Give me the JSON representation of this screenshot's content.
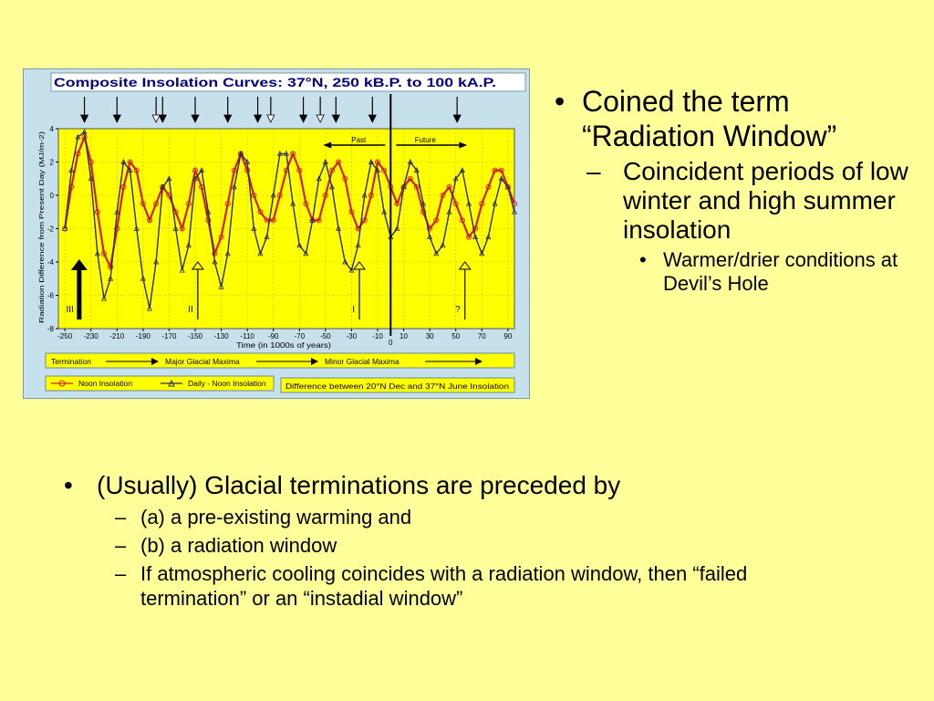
{
  "chart_data": {
    "type": "line",
    "title": "Composite Insolation Curves: 37°N, 250 kB.P. to 100 kA.P.",
    "xlabel": "Time (in 1000s of years)",
    "ylabel": "Radiation Difference from Present Day (MJ/m-2)",
    "xlim": [
      -255,
      95
    ],
    "ylim": [
      -8,
      4
    ],
    "x_ticks": [
      -250,
      -230,
      -210,
      -190,
      -170,
      -150,
      -130,
      -110,
      -90,
      -70,
      -50,
      -30,
      -10,
      0,
      10,
      30,
      50,
      70,
      90
    ],
    "x_tick_labels": [
      "-250",
      "-230",
      "-210",
      "-190",
      "-170",
      "-150",
      "-130",
      "-110",
      "-90",
      "-70",
      "-50",
      "-30",
      "-10",
      "0",
      "10",
      "30",
      "50",
      "70",
      "90"
    ],
    "y_ticks": [
      4,
      2,
      0,
      -2,
      -4,
      -6,
      -8
    ],
    "y_tick_labels": [
      "4",
      "2",
      "0",
      "-2",
      "-4",
      "-6",
      "-8"
    ],
    "series": [
      {
        "name": "Noon Insolation",
        "color": "#cc2222",
        "marker": "circle",
        "x": [
          -250,
          -245,
          -240,
          -235,
          -230,
          -225,
          -220,
          -215,
          -210,
          -205,
          -200,
          -195,
          -190,
          -185,
          -180,
          -175,
          -170,
          -165,
          -160,
          -155,
          -150,
          -145,
          -140,
          -135,
          -130,
          -125,
          -120,
          -115,
          -110,
          -105,
          -100,
          -95,
          -90,
          -85,
          -80,
          -75,
          -70,
          -65,
          -60,
          -55,
          -50,
          -45,
          -40,
          -35,
          -30,
          -25,
          -20,
          -15,
          -10,
          -5,
          0,
          5,
          10,
          15,
          20,
          25,
          30,
          35,
          40,
          45,
          50,
          55,
          60,
          65,
          70,
          75,
          80,
          85,
          90,
          95
        ],
        "y": [
          -2,
          0.5,
          2.5,
          3.5,
          2,
          -1,
          -3.5,
          -4.3,
          -2,
          0.5,
          2,
          1.5,
          -0.5,
          -1.5,
          -0.5,
          0.5,
          0,
          -1,
          -2,
          -0.5,
          1.5,
          0.5,
          -1.5,
          -3.5,
          -2.5,
          -0.5,
          1.5,
          2.5,
          1.5,
          0,
          -1,
          -1.5,
          -1.5,
          0,
          1.5,
          2.5,
          1.5,
          -0.5,
          -1.5,
          -1.5,
          0,
          1.5,
          2,
          1,
          -1,
          -2,
          -1.5,
          0,
          2,
          1.5,
          0.5,
          -0.5,
          0.5,
          1,
          0.5,
          -1,
          -2,
          -1.5,
          0,
          0.5,
          -0.5,
          -1.5,
          -2.5,
          -2,
          -0.5,
          0.5,
          1.5,
          1.5,
          0.5,
          -0.5
        ]
      },
      {
        "name": "Daily - Noon Insolation",
        "color": "#2a2a66",
        "marker": "triangle",
        "x": [
          -250,
          -245,
          -240,
          -235,
          -230,
          -225,
          -220,
          -215,
          -210,
          -205,
          -200,
          -195,
          -190,
          -185,
          -180,
          -175,
          -170,
          -165,
          -160,
          -155,
          -150,
          -145,
          -140,
          -135,
          -130,
          -125,
          -120,
          -115,
          -110,
          -105,
          -100,
          -95,
          -90,
          -85,
          -80,
          -75,
          -70,
          -65,
          -60,
          -55,
          -50,
          -45,
          -40,
          -35,
          -30,
          -25,
          -20,
          -15,
          -10,
          -5,
          0,
          5,
          10,
          15,
          20,
          25,
          30,
          35,
          40,
          45,
          50,
          55,
          60,
          65,
          70,
          75,
          80,
          85,
          90,
          95
        ],
        "y": [
          -2,
          1.5,
          3.5,
          3.8,
          1,
          -3.5,
          -6.2,
          -5,
          -1,
          2,
          1.5,
          -2,
          -5,
          -6.8,
          -4,
          0.5,
          1,
          -2,
          -4.5,
          -3,
          1,
          1.5,
          -1,
          -4,
          -5.5,
          -3.5,
          0.5,
          2.5,
          2,
          -2,
          -3.5,
          -2.5,
          0,
          2.5,
          2.5,
          -0.5,
          -3,
          -3.5,
          -1.5,
          1,
          2,
          0.5,
          -2,
          -4,
          -4.5,
          -3,
          0,
          2,
          1.5,
          -1,
          -2.5,
          -2,
          0.5,
          2,
          1.5,
          -0.5,
          -2.5,
          -3.5,
          -3,
          -1,
          1,
          1.5,
          -0.5,
          -2.5,
          -3.5,
          -2.5,
          -0.5,
          1,
          0.5,
          -1
        ]
      }
    ],
    "top_arrows": {
      "solid_x": [
        -235,
        -210,
        -175,
        -150,
        -125,
        -102,
        -67,
        -42,
        -14,
        51
      ],
      "outline_x": [
        -180,
        -92,
        -54
      ]
    },
    "bottom_arrows": [
      {
        "x": -239,
        "label": "III"
      },
      {
        "x": -148,
        "label": "II"
      },
      {
        "x": -24,
        "label": "I"
      },
      {
        "x": 57,
        "label": "?"
      }
    ],
    "divider_x": 0,
    "past_label": "Past",
    "future_label": "Future",
    "legend": {
      "termination": "Termination",
      "major": "Major Glacial Maxima",
      "minor": "Minor Glacial Maxima",
      "noon": "Noon Insolation",
      "daily": "Daily - Noon Insolation",
      "difference": "Difference between 20°N Dec and 37°N June Insolation"
    },
    "colors": {
      "outer_bg": "#c6e0ec",
      "plot_bg": "#ffff00",
      "title_bg": "#ffffff",
      "title_text": "#000080"
    }
  },
  "text": {
    "right": {
      "bullet1": "Coined the term “Radiation Window”",
      "sub1": "Coincident periods of low winter and high summer insolation",
      "subsub1": "Warmer/drier conditions at Devil’s Hole"
    },
    "bottom": {
      "bullet1": "(Usually) Glacial terminations are preceded by",
      "sub": [
        "(a) a pre-existing warming and",
        "(b) a radiation window",
        "If atmospheric cooling coincides with a radiation window, then “failed termination” or an “instadial window”"
      ]
    },
    "markers": {
      "bullet": "•",
      "dash": "–"
    }
  }
}
